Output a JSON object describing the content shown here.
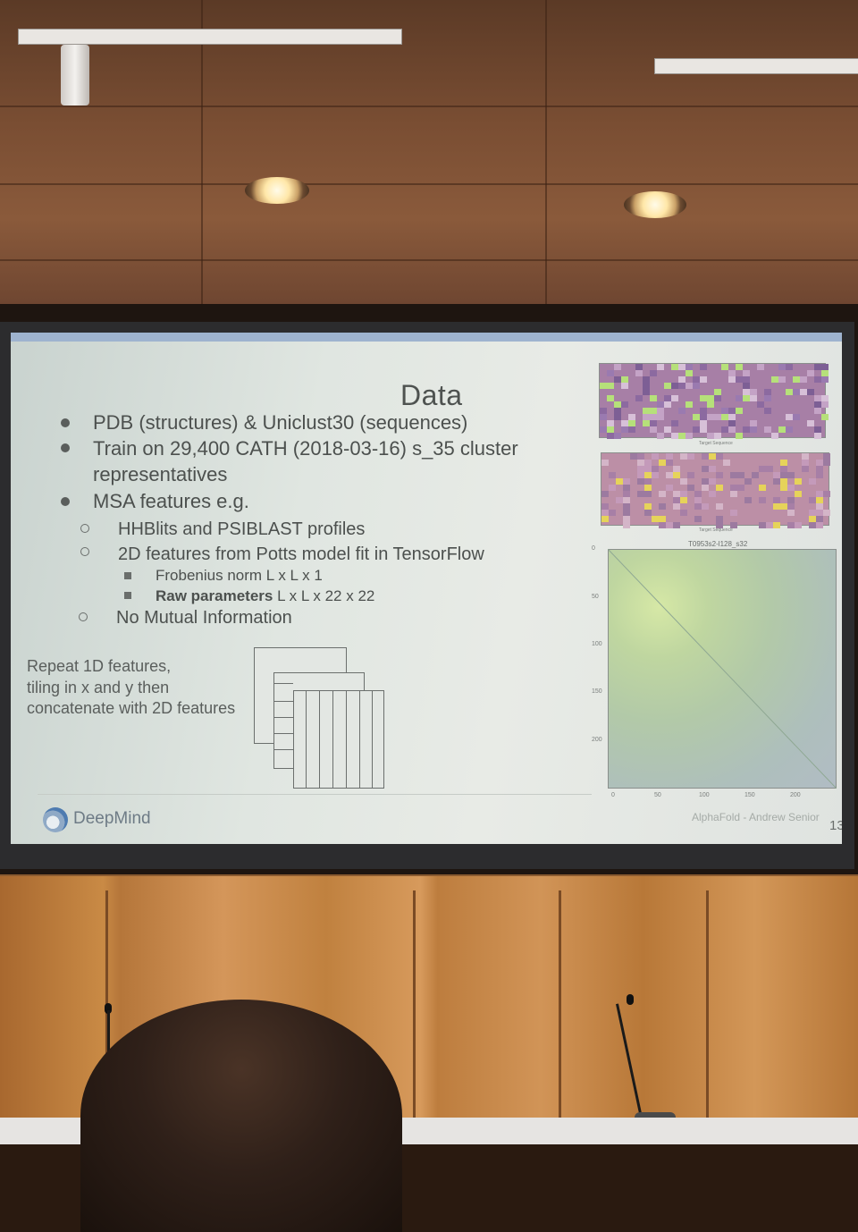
{
  "slide": {
    "title": "Data",
    "bullets": [
      {
        "text": "PDB (structures) & Uniclust30 (sequences)"
      },
      {
        "text": "Train on 29,400 CATH (2018-03-16) s_35 cluster"
      },
      {
        "text": "representatives"
      },
      {
        "text": "MSA features e.g."
      }
    ],
    "sub_bullets": [
      {
        "text": "HHBlits and PSIBLAST profiles"
      },
      {
        "text": "2D features from Potts model fit in TensorFlow"
      },
      {
        "text": "No Mutual Information"
      }
    ],
    "sub_sub_bullets": [
      {
        "text": "Frobenius norm L x L x 1"
      },
      {
        "bold": "Raw parameters",
        "text": " L x L x 22 x 22"
      }
    ],
    "repeat_text": [
      "Repeat 1D features,",
      "tiling in x and y then",
      "concatenate with 2D features"
    ],
    "logo_text": "DeepMind",
    "credit": "AlphaFold - Andrew Senior",
    "page_number": "13"
  },
  "plot": {
    "title": "T0953s2-l128_s32",
    "yticks": [
      "0",
      "50",
      "100",
      "150",
      "200"
    ],
    "xticks": [
      "0",
      "50",
      "100",
      "150",
      "200"
    ],
    "heat_xlabel": "Target Sequence"
  },
  "colors": {
    "slide_bg": "#e3e7e3",
    "text": "#4c504e",
    "heat1": "#a77fa6",
    "heat2": "#bc8fa6",
    "accent_green": "#b6e07a",
    "accent_yellow": "#e6d35a"
  }
}
